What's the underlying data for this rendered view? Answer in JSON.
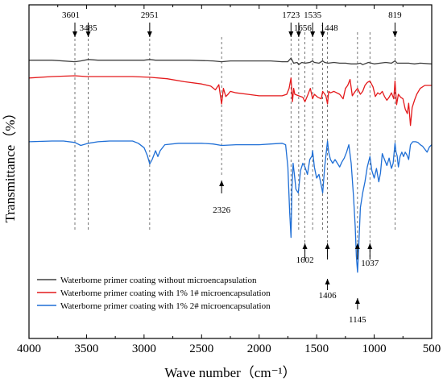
{
  "chart_data": {
    "type": "line",
    "title": "",
    "xlabel": "Wave number（cm⁻¹）",
    "ylabel": "Transmittance（%）",
    "x_reversed": true,
    "xlim": [
      4000,
      500
    ],
    "x_ticks": [
      "4000",
      "3500",
      "3000",
      "2500",
      "2000",
      "1500",
      "1000",
      "500"
    ],
    "y_ticks_shown": false,
    "grid": false,
    "legend_position": "lower-left",
    "series": [
      {
        "name": "Waterborne primer coating without microencapsulation",
        "color": "#404040",
        "points": [
          [
            4000,
            66
          ],
          [
            3800,
            66
          ],
          [
            3601,
            68
          ],
          [
            3550,
            67
          ],
          [
            3485,
            65
          ],
          [
            3400,
            66
          ],
          [
            3200,
            66
          ],
          [
            3000,
            66
          ],
          [
            2951,
            65
          ],
          [
            2900,
            66
          ],
          [
            2800,
            66
          ],
          [
            2600,
            66
          ],
          [
            2400,
            67
          ],
          [
            2326,
            68
          ],
          [
            2250,
            67
          ],
          [
            2100,
            67
          ],
          [
            1900,
            67
          ],
          [
            1800,
            68
          ],
          [
            1750,
            68
          ],
          [
            1723,
            63
          ],
          [
            1700,
            70
          ],
          [
            1670,
            69
          ],
          [
            1656,
            72
          ],
          [
            1630,
            69
          ],
          [
            1600,
            70
          ],
          [
            1560,
            69
          ],
          [
            1535,
            67
          ],
          [
            1520,
            69
          ],
          [
            1480,
            70
          ],
          [
            1448,
            67
          ],
          [
            1430,
            69
          ],
          [
            1400,
            70
          ],
          [
            1350,
            69
          ],
          [
            1300,
            70
          ],
          [
            1250,
            70
          ],
          [
            1200,
            71
          ],
          [
            1150,
            71
          ],
          [
            1120,
            70
          ],
          [
            1100,
            72
          ],
          [
            1050,
            69
          ],
          [
            1000,
            71
          ],
          [
            950,
            70
          ],
          [
            900,
            69
          ],
          [
            850,
            70
          ],
          [
            819,
            67
          ],
          [
            800,
            70
          ],
          [
            750,
            70
          ],
          [
            700,
            70
          ],
          [
            650,
            71
          ],
          [
            600,
            70
          ],
          [
            500,
            71
          ]
        ]
      },
      {
        "name": "Waterborne primer coating with 1% 1# microencapsulation",
        "color": "#e41a1c",
        "points": [
          [
            4000,
            90
          ],
          [
            3800,
            88
          ],
          [
            3601,
            87
          ],
          [
            3500,
            88
          ],
          [
            3300,
            88
          ],
          [
            3100,
            88
          ],
          [
            2951,
            89
          ],
          [
            2800,
            91
          ],
          [
            2650,
            95
          ],
          [
            2500,
            98
          ],
          [
            2420,
            101
          ],
          [
            2380,
            106
          ],
          [
            2350,
            99
          ],
          [
            2326,
            125
          ],
          [
            2310,
            104
          ],
          [
            2290,
            115
          ],
          [
            2270,
            112
          ],
          [
            2250,
            108
          ],
          [
            2200,
            110
          ],
          [
            2100,
            112
          ],
          [
            2000,
            114
          ],
          [
            1900,
            114
          ],
          [
            1800,
            114
          ],
          [
            1760,
            112
          ],
          [
            1740,
            104
          ],
          [
            1723,
            90
          ],
          [
            1710,
            122
          ],
          [
            1700,
            104
          ],
          [
            1690,
            112
          ],
          [
            1656,
            114
          ],
          [
            1620,
            116
          ],
          [
            1602,
            122
          ],
          [
            1580,
            114
          ],
          [
            1555,
            104
          ],
          [
            1535,
            118
          ],
          [
            1520,
            112
          ],
          [
            1490,
            116
          ],
          [
            1460,
            118
          ],
          [
            1448,
            108
          ],
          [
            1420,
            114
          ],
          [
            1406,
            125
          ],
          [
            1395,
            108
          ],
          [
            1380,
            110
          ],
          [
            1350,
            108
          ],
          [
            1300,
            112
          ],
          [
            1270,
            118
          ],
          [
            1250,
            104
          ],
          [
            1230,
            100
          ],
          [
            1210,
            92
          ],
          [
            1190,
            114
          ],
          [
            1165,
            108
          ],
          [
            1145,
            104
          ],
          [
            1120,
            112
          ],
          [
            1100,
            108
          ],
          [
            1080,
            100
          ],
          [
            1060,
            96
          ],
          [
            1037,
            94
          ],
          [
            1010,
            102
          ],
          [
            990,
            115
          ],
          [
            970,
            110
          ],
          [
            950,
            112
          ],
          [
            930,
            108
          ],
          [
            910,
            115
          ],
          [
            890,
            120
          ],
          [
            870,
            116
          ],
          [
            850,
            110
          ],
          [
            830,
            118
          ],
          [
            819,
            94
          ],
          [
            805,
            126
          ],
          [
            790,
            112
          ],
          [
            770,
            116
          ],
          [
            750,
            118
          ],
          [
            730,
            132
          ],
          [
            712,
            138
          ],
          [
            700,
            124
          ],
          [
            685,
            154
          ],
          [
            670,
            130
          ],
          [
            650,
            120
          ],
          [
            630,
            112
          ],
          [
            600,
            104
          ],
          [
            560,
            100
          ],
          [
            520,
            100
          ],
          [
            500,
            100
          ]
        ]
      },
      {
        "name": "Waterborne primer coating with 1% 2# microencapsulation",
        "color": "#1f6fd6",
        "points": [
          [
            4000,
            176
          ],
          [
            3800,
            175
          ],
          [
            3700,
            175
          ],
          [
            3601,
            177
          ],
          [
            3550,
            181
          ],
          [
            3485,
            178
          ],
          [
            3400,
            176
          ],
          [
            3300,
            175
          ],
          [
            3200,
            175
          ],
          [
            3100,
            175
          ],
          [
            3050,
            178
          ],
          [
            3000,
            184
          ],
          [
            2970,
            195
          ],
          [
            2951,
            206
          ],
          [
            2930,
            200
          ],
          [
            2900,
            188
          ],
          [
            2880,
            196
          ],
          [
            2860,
            188
          ],
          [
            2820,
            180
          ],
          [
            2700,
            178
          ],
          [
            2600,
            178
          ],
          [
            2500,
            178
          ],
          [
            2400,
            179
          ],
          [
            2326,
            181
          ],
          [
            2200,
            180
          ],
          [
            2100,
            180
          ],
          [
            2000,
            180
          ],
          [
            1900,
            179
          ],
          [
            1800,
            178
          ],
          [
            1770,
            180
          ],
          [
            1750,
            210
          ],
          [
            1735,
            270
          ],
          [
            1723,
            305
          ],
          [
            1715,
            240
          ],
          [
            1705,
            205
          ],
          [
            1690,
            225
          ],
          [
            1680,
            240
          ],
          [
            1660,
            245
          ],
          [
            1640,
            215
          ],
          [
            1620,
            205
          ],
          [
            1602,
            210
          ],
          [
            1580,
            220
          ],
          [
            1560,
            200
          ],
          [
            1540,
            195
          ],
          [
            1535,
            188
          ],
          [
            1520,
            210
          ],
          [
            1500,
            225
          ],
          [
            1480,
            220
          ],
          [
            1460,
            235
          ],
          [
            1448,
            245
          ],
          [
            1430,
            210
          ],
          [
            1420,
            195
          ],
          [
            1406,
            175
          ],
          [
            1395,
            190
          ],
          [
            1380,
            200
          ],
          [
            1360,
            205
          ],
          [
            1340,
            200
          ],
          [
            1320,
            205
          ],
          [
            1300,
            210
          ],
          [
            1280,
            203
          ],
          [
            1260,
            198
          ],
          [
            1240,
            190
          ],
          [
            1220,
            180
          ],
          [
            1200,
            205
          ],
          [
            1180,
            250
          ],
          [
            1165,
            290
          ],
          [
            1155,
            330
          ],
          [
            1145,
            352
          ],
          [
            1135,
            320
          ],
          [
            1120,
            265
          ],
          [
            1100,
            245
          ],
          [
            1080,
            230
          ],
          [
            1060,
            210
          ],
          [
            1037,
            196
          ],
          [
            1020,
            215
          ],
          [
            1000,
            225
          ],
          [
            980,
            212
          ],
          [
            960,
            230
          ],
          [
            945,
            218
          ],
          [
            930,
            192
          ],
          [
            910,
            200
          ],
          [
            890,
            208
          ],
          [
            870,
            198
          ],
          [
            850,
            212
          ],
          [
            835,
            205
          ],
          [
            819,
            178
          ],
          [
            810,
            190
          ],
          [
            800,
            195
          ],
          [
            790,
            210
          ],
          [
            775,
            196
          ],
          [
            760,
            190
          ],
          [
            745,
            196
          ],
          [
            730,
            190
          ],
          [
            715,
            194
          ],
          [
            700,
            200
          ],
          [
            685,
            180
          ],
          [
            665,
            176
          ],
          [
            640,
            176
          ],
          [
            620,
            177
          ],
          [
            600,
            180
          ],
          [
            580,
            182
          ],
          [
            560,
            186
          ],
          [
            540,
            190
          ],
          [
            520,
            183
          ],
          [
            500,
            180
          ]
        ]
      }
    ],
    "annotations": [
      {
        "label": "3601",
        "x": 3601,
        "pos": "top"
      },
      {
        "label": "3485",
        "x": 3485,
        "pos": "top"
      },
      {
        "label": "2951",
        "x": 2951,
        "pos": "top"
      },
      {
        "label": "1723",
        "x": 1723,
        "pos": "top"
      },
      {
        "label": "1656",
        "x": 1656,
        "pos": "top"
      },
      {
        "label": "1535",
        "x": 1535,
        "pos": "top"
      },
      {
        "label": "1448",
        "x": 1448,
        "pos": "top"
      },
      {
        "label": "819",
        "x": 819,
        "pos": "top"
      },
      {
        "label": "2326",
        "x": 2326,
        "pos": "mid"
      },
      {
        "label": "1602",
        "x": 1602,
        "pos": "bottom"
      },
      {
        "label": "1406",
        "x": 1406,
        "pos": "bottom"
      },
      {
        "label": "1145",
        "x": 1145,
        "pos": "bottom"
      },
      {
        "label": "1037",
        "x": 1037,
        "pos": "bottom"
      }
    ]
  }
}
